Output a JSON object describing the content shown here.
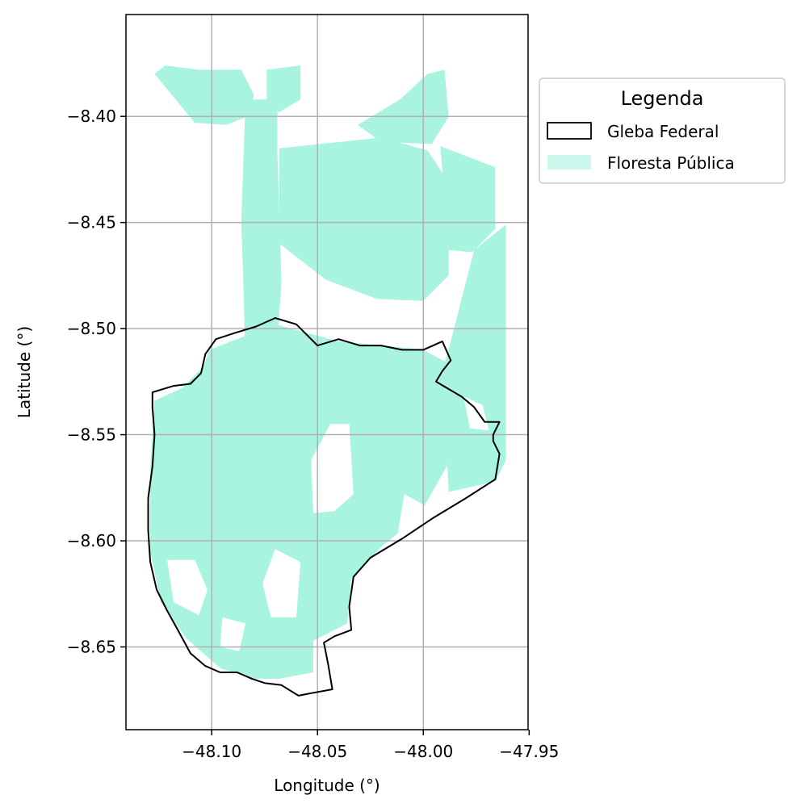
{
  "chart_data": {
    "type": "map",
    "xlabel": "Longitude (°)",
    "ylabel": "Latitude (°)",
    "xlim": [
      -48.1405,
      -47.9505
    ],
    "ylim": [
      -8.689,
      -8.352
    ],
    "x_ticks": [
      -48.1,
      -48.05,
      -48.0,
      -47.95
    ],
    "x_tick_labels": [
      "−48.10",
      "−48.05",
      "−48.00",
      "−47.95"
    ],
    "y_ticks": [
      -8.4,
      -8.45,
      -8.5,
      -8.55,
      -8.6,
      -8.65
    ],
    "y_tick_labels": [
      "−8.40",
      "−8.45",
      "−8.50",
      "−8.55",
      "−8.60",
      "−8.65"
    ],
    "grid": true,
    "colors": {
      "floresta": "#a8f4e0",
      "gleba_edge": "#000000",
      "grid": "#b0b0b0"
    },
    "legend": {
      "title": "Legenda",
      "placement": "outside-upper-right",
      "entries": [
        {
          "label": "Gleba Federal",
          "style": "outline"
        },
        {
          "label": "Floresta Pública",
          "style": "fill"
        }
      ]
    },
    "gleba_federal_outline": [
      [
        -48.103,
        -8.512
      ],
      [
        -48.098,
        -8.505
      ],
      [
        -48.089,
        -8.502
      ],
      [
        -48.079,
        -8.499
      ],
      [
        -48.07,
        -8.495
      ],
      [
        -48.06,
        -8.498
      ],
      [
        -48.05,
        -8.508
      ],
      [
        -48.04,
        -8.505
      ],
      [
        -48.03,
        -8.508
      ],
      [
        -48.02,
        -8.508
      ],
      [
        -48.01,
        -8.51
      ],
      [
        -48.0,
        -8.51
      ],
      [
        -47.991,
        -8.506
      ],
      [
        -47.987,
        -8.515
      ],
      [
        -47.991,
        -8.52
      ],
      [
        -47.994,
        -8.525
      ],
      [
        -47.982,
        -8.532
      ],
      [
        -47.976,
        -8.537
      ],
      [
        -47.971,
        -8.544
      ],
      [
        -47.964,
        -8.544
      ],
      [
        -47.967,
        -8.55
      ],
      [
        -47.967,
        -8.553
      ],
      [
        -47.964,
        -8.559
      ],
      [
        -47.966,
        -8.571
      ],
      [
        -47.98,
        -8.58
      ],
      [
        -47.995,
        -8.589
      ],
      [
        -48.01,
        -8.599
      ],
      [
        -48.025,
        -8.608
      ],
      [
        -48.033,
        -8.617
      ],
      [
        -48.035,
        -8.631
      ],
      [
        -48.034,
        -8.642
      ],
      [
        -48.042,
        -8.645
      ],
      [
        -48.047,
        -8.648
      ],
      [
        -48.045,
        -8.658
      ],
      [
        -48.043,
        -8.67
      ],
      [
        -48.054,
        -8.672
      ],
      [
        -48.059,
        -8.673
      ],
      [
        -48.067,
        -8.668
      ],
      [
        -48.075,
        -8.667
      ],
      [
        -48.081,
        -8.665
      ],
      [
        -48.088,
        -8.662
      ],
      [
        -48.096,
        -8.662
      ],
      [
        -48.103,
        -8.659
      ],
      [
        -48.11,
        -8.653
      ],
      [
        -48.116,
        -8.642
      ],
      [
        -48.121,
        -8.633
      ],
      [
        -48.126,
        -8.623
      ],
      [
        -48.129,
        -8.61
      ],
      [
        -48.13,
        -8.595
      ],
      [
        -48.13,
        -8.58
      ],
      [
        -48.128,
        -8.565
      ],
      [
        -48.127,
        -8.55
      ],
      [
        -48.128,
        -8.537
      ],
      [
        -48.128,
        -8.53
      ],
      [
        -48.118,
        -8.527
      ],
      [
        -48.11,
        -8.526
      ],
      [
        -48.105,
        -8.521
      ]
    ],
    "floresta_publica_polygons": [
      [
        [
          -48.084,
          -8.392
        ],
        [
          -48.069,
          -8.392
        ],
        [
          -48.069,
          -8.416
        ],
        [
          -48.067,
          -8.478
        ],
        [
          -48.07,
          -8.52
        ],
        [
          -48.084,
          -8.52
        ],
        [
          -48.085,
          -8.48
        ],
        [
          -48.086,
          -8.45
        ],
        [
          -48.085,
          -8.42
        ]
      ],
      [
        [
          -48.127,
          -8.38
        ],
        [
          -48.122,
          -8.376
        ],
        [
          -48.106,
          -8.378
        ],
        [
          -48.086,
          -8.378
        ],
        [
          -48.08,
          -8.39
        ],
        [
          -48.083,
          -8.4
        ],
        [
          -48.093,
          -8.404
        ],
        [
          -48.108,
          -8.403
        ]
      ],
      [
        [
          -48.074,
          -8.378
        ],
        [
          -48.058,
          -8.376
        ],
        [
          -48.058,
          -8.392
        ],
        [
          -48.068,
          -8.398
        ],
        [
          -48.074,
          -8.396
        ]
      ],
      [
        [
          -48.068,
          -8.415
        ],
        [
          -48.02,
          -8.41
        ],
        [
          -47.998,
          -8.416
        ],
        [
          -47.988,
          -8.431
        ],
        [
          -47.988,
          -8.475
        ],
        [
          -48.0,
          -8.487
        ],
        [
          -48.022,
          -8.486
        ],
        [
          -48.046,
          -8.477
        ],
        [
          -48.068,
          -8.46
        ]
      ],
      [
        [
          -48.031,
          -8.404
        ],
        [
          -48.011,
          -8.392
        ],
        [
          -47.998,
          -8.38
        ],
        [
          -47.99,
          -8.378
        ],
        [
          -47.988,
          -8.4
        ],
        [
          -47.996,
          -8.413
        ],
        [
          -48.02,
          -8.412
        ]
      ],
      [
        [
          -47.992,
          -8.414
        ],
        [
          -47.966,
          -8.424
        ],
        [
          -47.966,
          -8.453
        ],
        [
          -47.977,
          -8.464
        ],
        [
          -47.988,
          -8.463
        ],
        [
          -47.99,
          -8.437
        ]
      ],
      [
        [
          -47.976,
          -8.463
        ],
        [
          -47.961,
          -8.451
        ],
        [
          -47.961,
          -8.562
        ],
        [
          -47.966,
          -8.572
        ],
        [
          -47.988,
          -8.577
        ],
        [
          -47.991,
          -8.52
        ],
        [
          -47.987,
          -8.506
        ]
      ],
      [
        [
          -48.101,
          -8.51
        ],
        [
          -48.07,
          -8.498
        ],
        [
          -48.04,
          -8.506
        ],
        [
          -48.0,
          -8.51
        ],
        [
          -47.989,
          -8.516
        ],
        [
          -47.986,
          -8.54
        ],
        [
          -47.989,
          -8.565
        ],
        [
          -48.002,
          -8.588
        ],
        [
          -48.02,
          -8.603
        ],
        [
          -48.034,
          -8.618
        ],
        [
          -48.036,
          -8.639
        ],
        [
          -48.052,
          -8.647
        ],
        [
          -48.052,
          -8.662
        ],
        [
          -48.068,
          -8.665
        ],
        [
          -48.08,
          -8.665
        ],
        [
          -48.096,
          -8.66
        ],
        [
          -48.112,
          -8.646
        ],
        [
          -48.124,
          -8.629
        ],
        [
          -48.129,
          -8.605
        ],
        [
          -48.129,
          -8.566
        ],
        [
          -48.127,
          -8.534
        ],
        [
          -48.114,
          -8.528
        ],
        [
          -48.104,
          -8.518
        ]
      ]
    ],
    "white_gaps": [
      [
        [
          -48.044,
          -8.545
        ],
        [
          -48.035,
          -8.545
        ],
        [
          -48.033,
          -8.578
        ],
        [
          -48.042,
          -8.586
        ],
        [
          -48.052,
          -8.587
        ],
        [
          -48.053,
          -8.562
        ]
      ],
      [
        [
          -48.009,
          -8.578
        ],
        [
          -48.0,
          -8.583
        ],
        [
          -47.994,
          -8.597
        ],
        [
          -48.005,
          -8.604
        ],
        [
          -48.012,
          -8.596
        ]
      ],
      [
        [
          -48.121,
          -8.609
        ],
        [
          -48.108,
          -8.609
        ],
        [
          -48.102,
          -8.623
        ],
        [
          -48.106,
          -8.635
        ],
        [
          -48.118,
          -8.629
        ]
      ],
      [
        [
          -48.07,
          -8.604
        ],
        [
          -48.058,
          -8.61
        ],
        [
          -48.06,
          -8.636
        ],
        [
          -48.072,
          -8.636
        ],
        [
          -48.076,
          -8.62
        ]
      ],
      [
        [
          -48.095,
          -8.636
        ],
        [
          -48.084,
          -8.639
        ],
        [
          -48.087,
          -8.652
        ],
        [
          -48.096,
          -8.65
        ]
      ],
      [
        [
          -47.981,
          -8.532
        ],
        [
          -47.972,
          -8.536
        ],
        [
          -47.969,
          -8.548
        ],
        [
          -47.978,
          -8.547
        ]
      ]
    ]
  }
}
